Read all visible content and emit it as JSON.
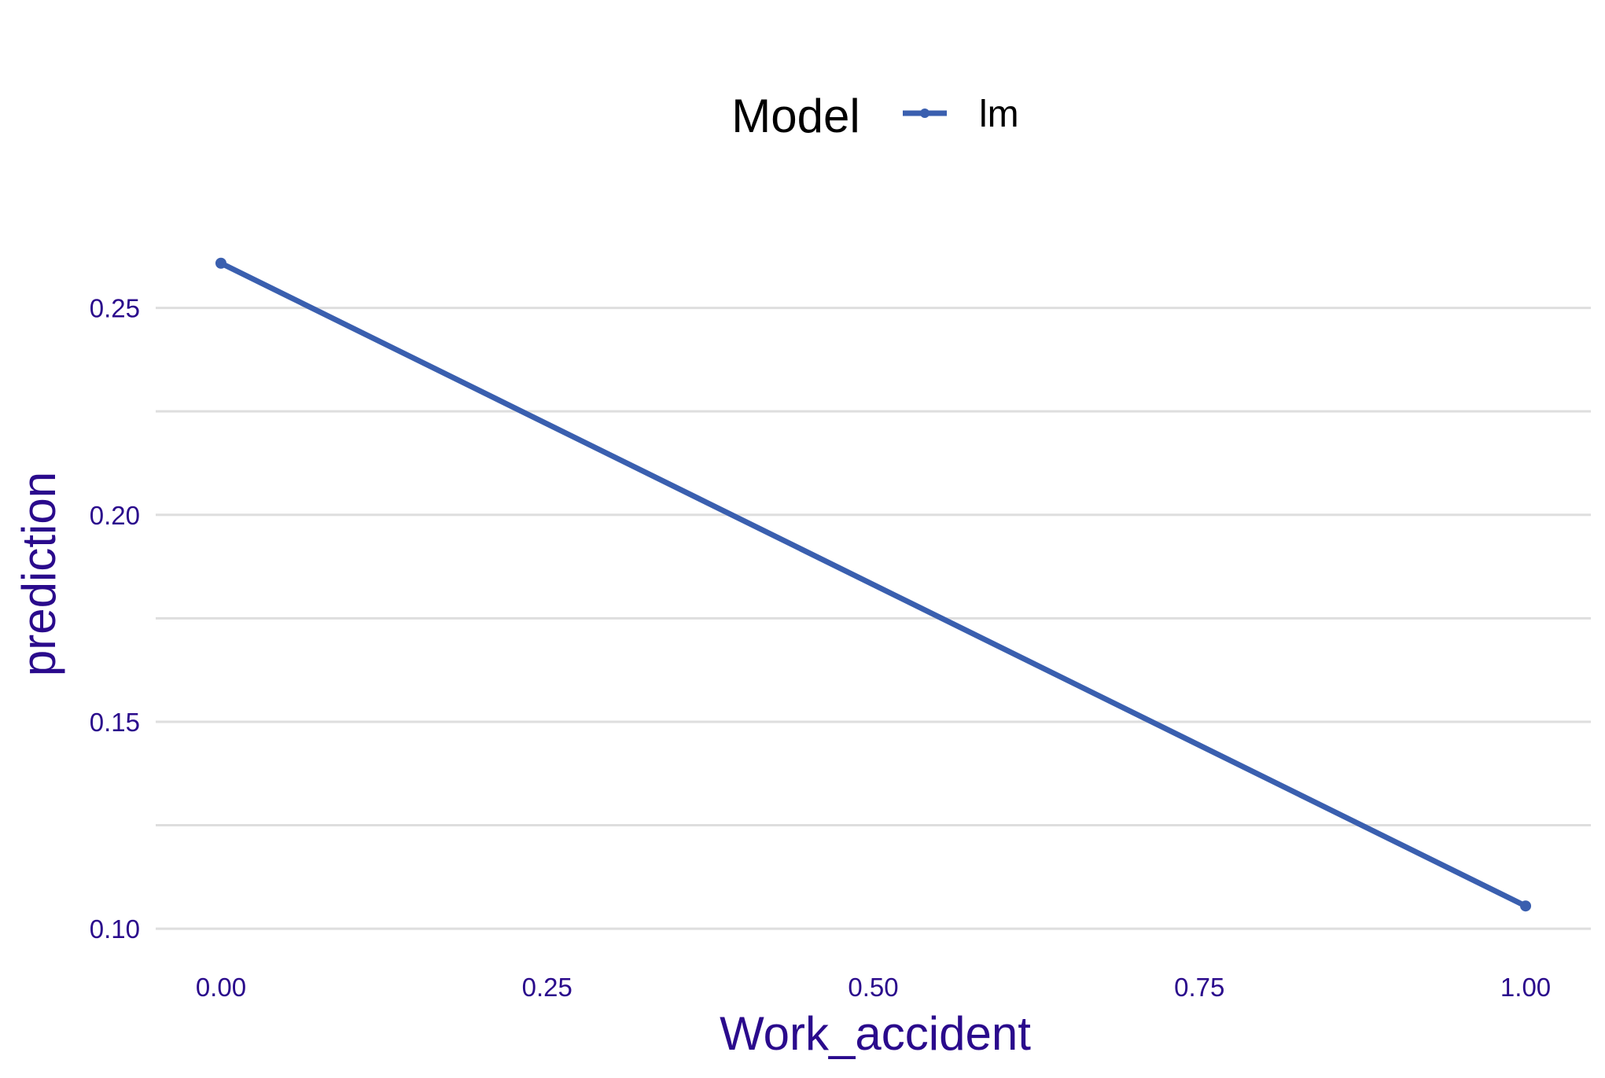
{
  "chart_data": {
    "type": "line",
    "title": "",
    "xlabel": "Work_accident",
    "ylabel": "prediction",
    "xlim": [
      -0.05,
      1.05
    ],
    "ylim": [
      0.093,
      0.275
    ],
    "x_ticks": [
      0.0,
      0.25,
      0.5,
      0.75,
      1.0
    ],
    "x_tick_labels": [
      "0.00",
      "0.25",
      "0.50",
      "0.75",
      "1.00"
    ],
    "y_ticks": [
      0.1,
      0.15,
      0.2,
      0.25
    ],
    "y_tick_labels": [
      "0.10",
      "0.15",
      "0.20",
      "0.25"
    ],
    "y_minor_gridlines": [
      0.125,
      0.175,
      0.225
    ],
    "grid": true,
    "legend": {
      "position": "top",
      "title": "Model",
      "entries": [
        "lm"
      ]
    },
    "series": [
      {
        "name": "lm",
        "color": "#3A5FAF",
        "x": [
          0.0,
          1.0
        ],
        "y": [
          0.2608,
          0.1055
        ]
      }
    ],
    "colors": {
      "axis_text": "#2A0A8C",
      "gridline": "#DEDEDE",
      "legend_title": "#000000"
    }
  }
}
